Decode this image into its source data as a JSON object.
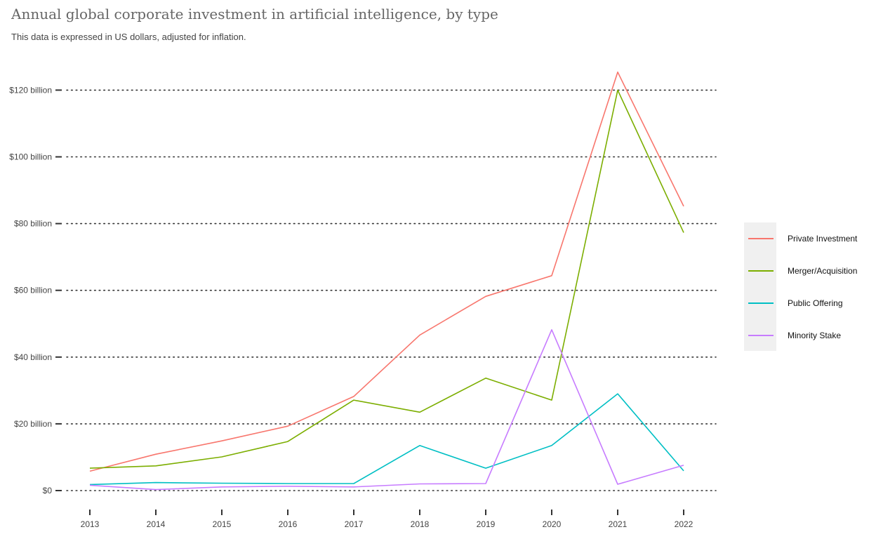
{
  "chart_data": {
    "type": "line",
    "title": "Annual global corporate investment in artificial intelligence, by type",
    "subtitle": "This data is expressed in US dollars, adjusted for inflation.",
    "xlabel": "",
    "ylabel": "",
    "x": [
      "2013",
      "2014",
      "2015",
      "2016",
      "2017",
      "2018",
      "2019",
      "2020",
      "2021",
      "2022"
    ],
    "ylim": [
      0,
      125
    ],
    "yticks": [
      0,
      20,
      40,
      60,
      80,
      100,
      120
    ],
    "ytick_labels": [
      "$0",
      "$20 billion",
      "$40 billion",
      "$60 billion",
      "$80 billion",
      "$100 billion",
      "$120 billion"
    ],
    "grid": "horizontal dotted",
    "legend_position": "right",
    "series": [
      {
        "name": "Private Investment",
        "color": "#f8766d",
        "values": [
          5.8,
          10.9,
          14.9,
          19.3,
          28.2,
          46.6,
          58.2,
          64.4,
          125.4,
          85.2
        ]
      },
      {
        "name": "Merger/Acquisition",
        "color": "#7cae00",
        "values": [
          6.7,
          7.4,
          10.1,
          14.7,
          27.1,
          23.5,
          33.7,
          27.1,
          120.0,
          77.3
        ]
      },
      {
        "name": "Public Offering",
        "color": "#00bfc4",
        "values": [
          1.8,
          2.4,
          2.2,
          2.1,
          2.1,
          13.5,
          6.7,
          13.5,
          29.0,
          5.9
        ]
      },
      {
        "name": "Minority Stake",
        "color": "#c77cff",
        "values": [
          1.6,
          0.3,
          1.1,
          1.3,
          1.1,
          2.0,
          2.1,
          48.2,
          1.9,
          7.6
        ]
      }
    ]
  }
}
